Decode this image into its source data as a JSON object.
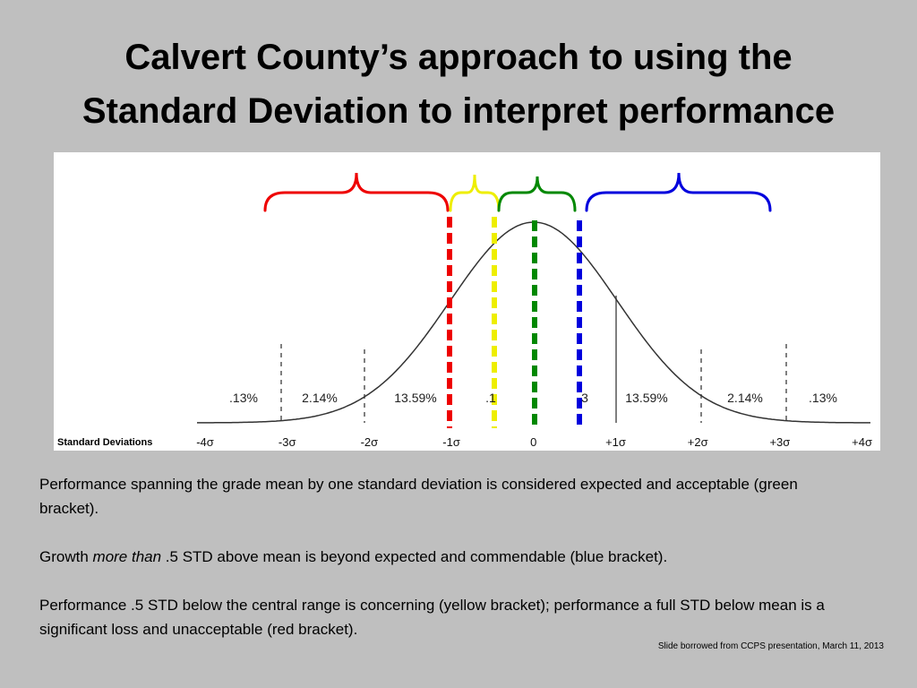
{
  "title": [
    "Calvert County’s approach to using the",
    "Standard Deviation to interpret performance"
  ],
  "figure": {
    "percent_labels": [
      ".13%",
      "2.14%",
      "13.59%",
      ".1",
      "3",
      "13.59%",
      "2.14%",
      ".13%"
    ],
    "axis_title": "Standard Deviations",
    "axis_labels": [
      "-4σ",
      "-3σ",
      "-2σ",
      "-1σ",
      "0",
      "+1σ",
      "+2σ",
      "+3σ",
      "+4σ"
    ]
  },
  "paragraphs": [
    {
      "text": "Performance spanning the grade mean by one standard deviation is considered expected and acceptable (green bracket)."
    },
    {
      "parts": [
        "Growth ",
        "more than",
        " .5 STD above mean is beyond expected and commendable (blue bracket)."
      ]
    },
    {
      "text": "Performance .5 STD below the central range is concerning (yellow bracket); performance a full STD below mean is a significant loss and unacceptable (red bracket)."
    }
  ],
  "credit": "Slide borrowed from CCPS presentation, March 11, 2013"
}
